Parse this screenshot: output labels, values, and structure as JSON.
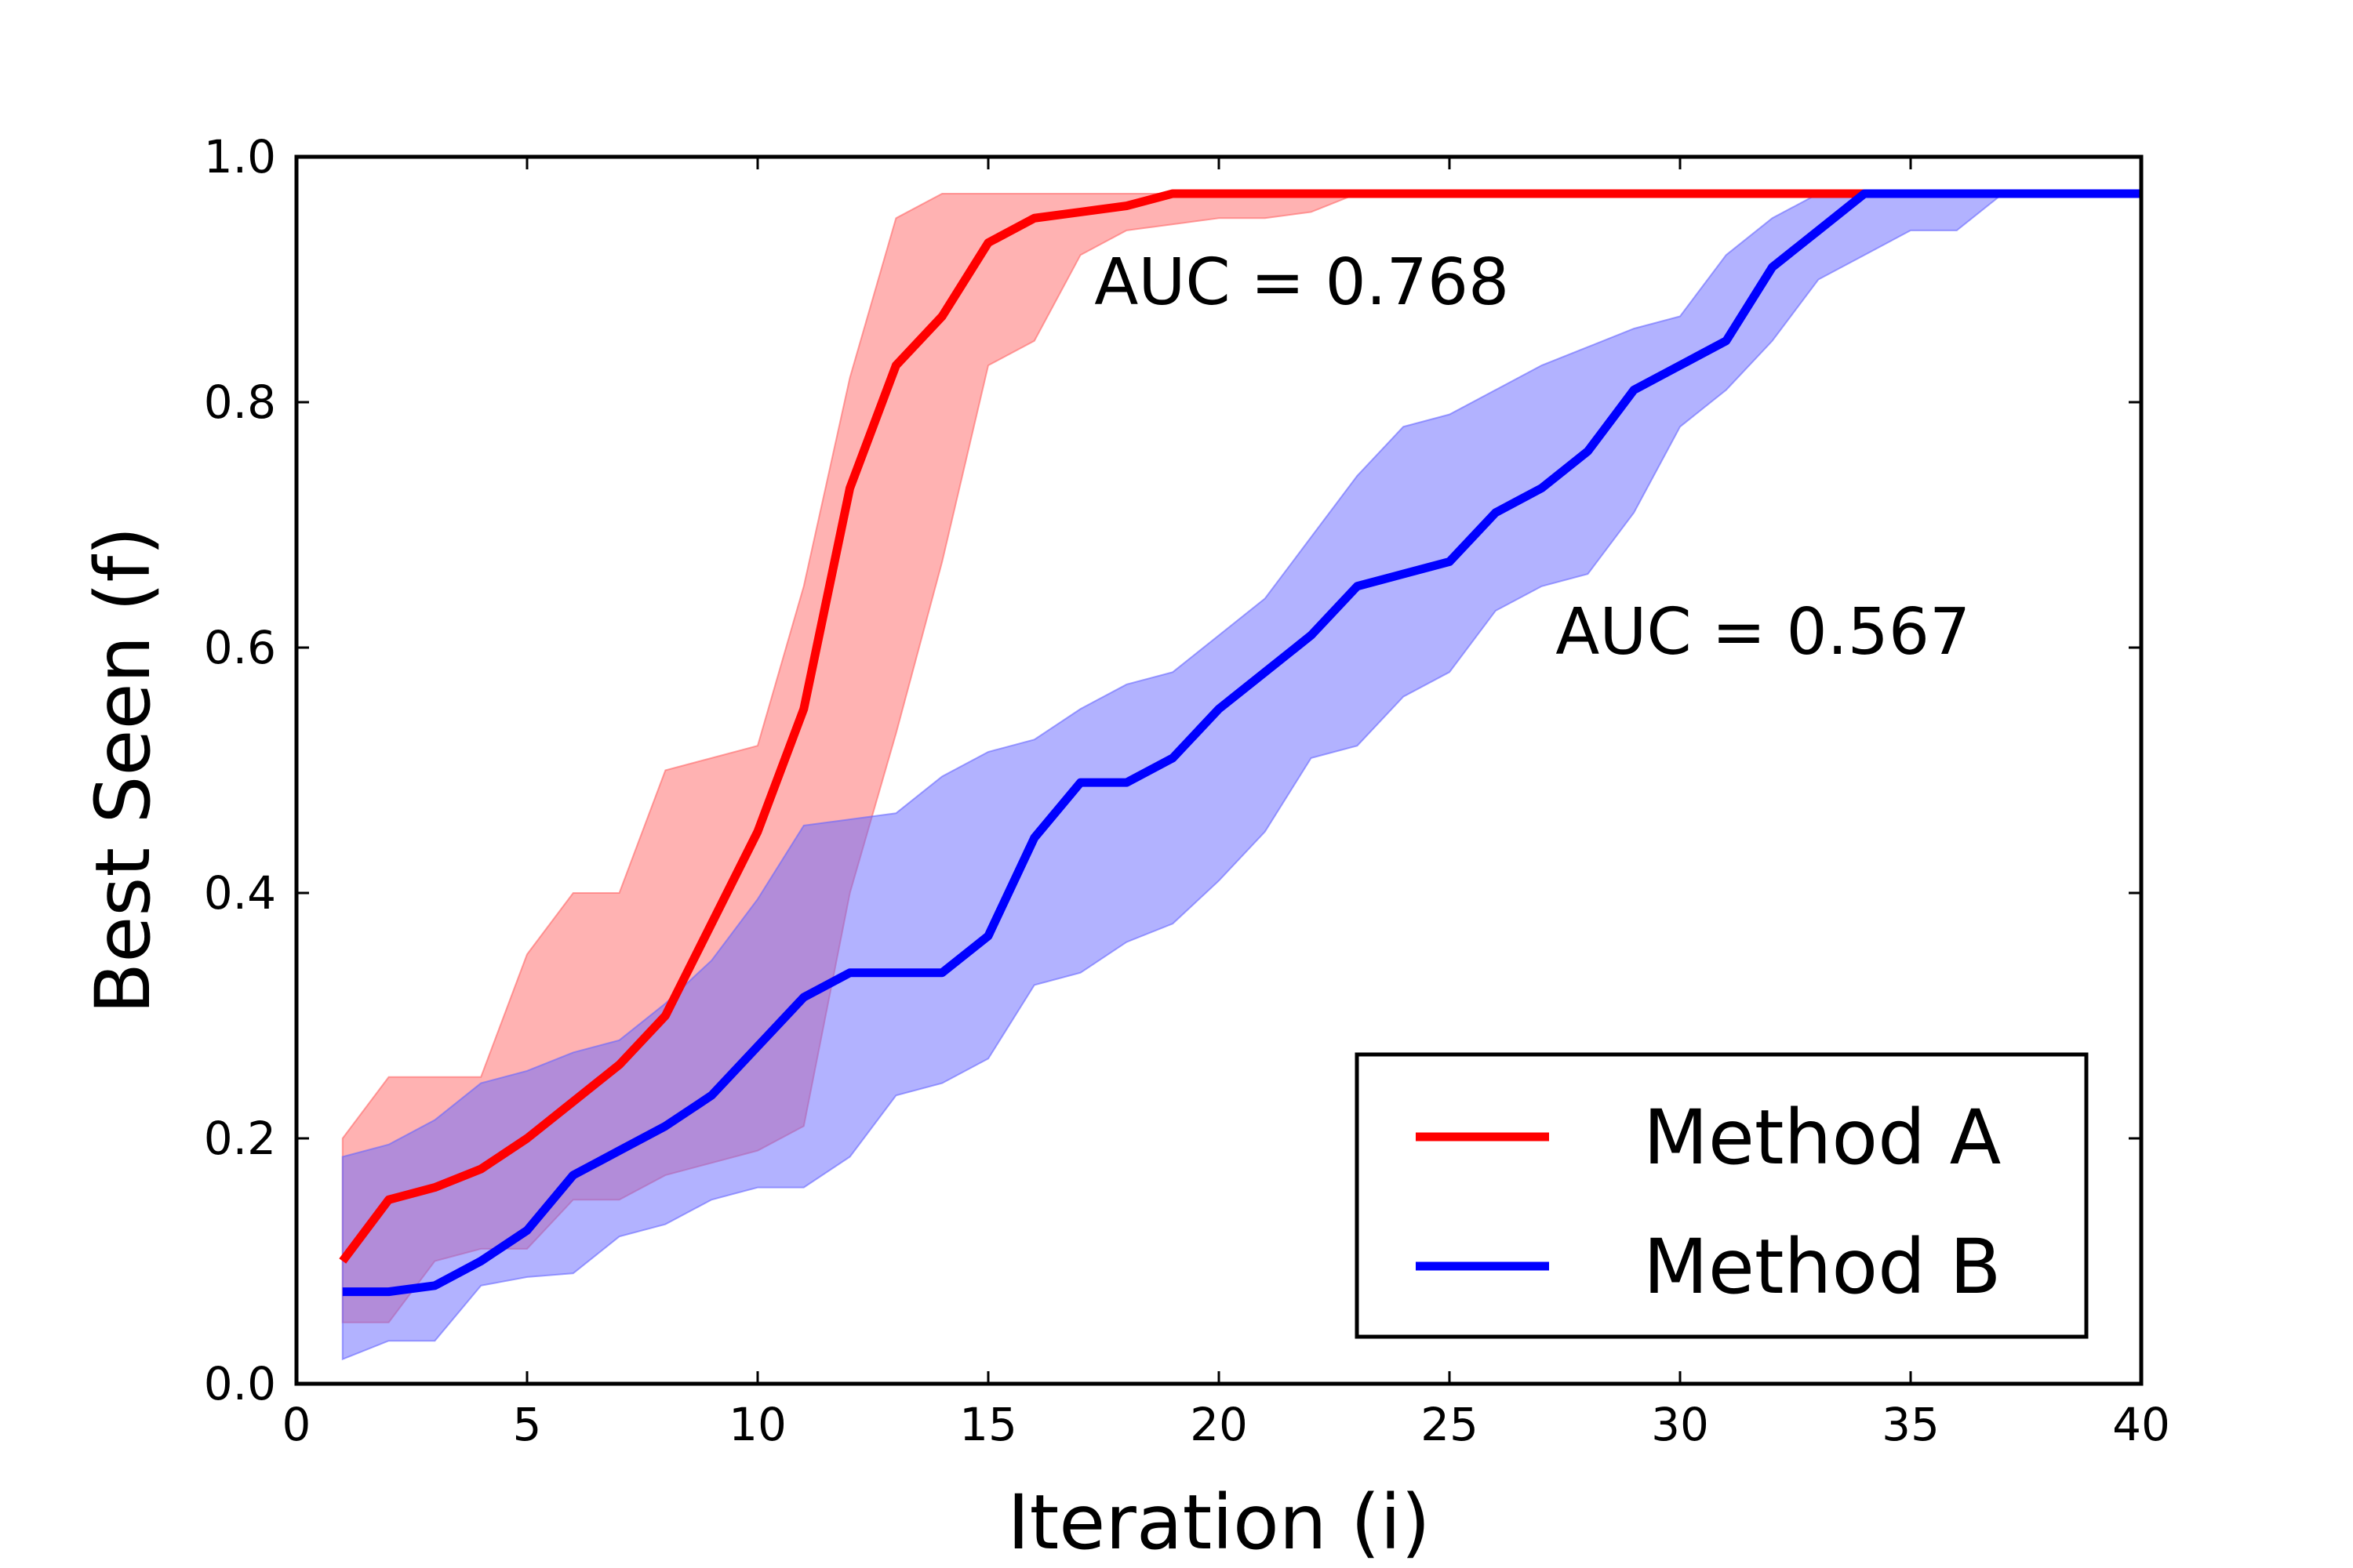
{
  "chart_data": {
    "type": "line",
    "title": "",
    "xlabel": "Iteration (i)",
    "ylabel": "Best Seen (f)",
    "xlim": [
      0,
      40
    ],
    "ylim": [
      0.0,
      1.0
    ],
    "xticks": [
      0,
      5,
      10,
      15,
      20,
      25,
      30,
      35,
      40
    ],
    "xtick_labels": [
      "0",
      "5",
      "10",
      "15",
      "20",
      "25",
      "30",
      "35",
      "40"
    ],
    "yticks": [
      0.0,
      0.2,
      0.4,
      0.6,
      0.8,
      1.0
    ],
    "ytick_labels": [
      "0.0",
      "0.2",
      "0.4",
      "0.6",
      "0.8",
      "1.0"
    ],
    "grid": false,
    "legend_position": "lower-right",
    "x": [
      1,
      2,
      3,
      4,
      5,
      6,
      7,
      8,
      9,
      10,
      11,
      12,
      13,
      14,
      15,
      16,
      17,
      18,
      19,
      20,
      21,
      22,
      23,
      24,
      25,
      26,
      27,
      28,
      29,
      30,
      31,
      32,
      33,
      34,
      35,
      36,
      37,
      38,
      39,
      40
    ],
    "series": [
      {
        "name": "Method A",
        "color": "#ff0000",
        "band_color": "#ff6666",
        "values": [
          0.1,
          0.15,
          0.16,
          0.175,
          0.2,
          0.23,
          0.26,
          0.3,
          0.375,
          0.45,
          0.55,
          0.73,
          0.83,
          0.87,
          0.93,
          0.95,
          0.955,
          0.96,
          0.97,
          0.97,
          0.97,
          0.97,
          0.97,
          0.97,
          0.97,
          0.97,
          0.97,
          0.97,
          0.97,
          0.97,
          0.97,
          0.97,
          0.97,
          0.97,
          0.97,
          0.97,
          0.97,
          0.97,
          0.97,
          0.97
        ],
        "upper": [
          0.2,
          0.25,
          0.25,
          0.25,
          0.35,
          0.4,
          0.4,
          0.5,
          0.51,
          0.52,
          0.65,
          0.82,
          0.95,
          0.97,
          0.97,
          0.97,
          0.97,
          0.97,
          0.97,
          0.97,
          0.97,
          0.97,
          0.97,
          0.97,
          0.97,
          0.97,
          0.97,
          0.97,
          0.97,
          0.97,
          0.97,
          0.97,
          0.97,
          0.97,
          0.97,
          0.97,
          0.97,
          0.97,
          0.97,
          0.97
        ],
        "lower": [
          0.05,
          0.05,
          0.1,
          0.11,
          0.11,
          0.15,
          0.15,
          0.17,
          0.18,
          0.19,
          0.21,
          0.4,
          0.53,
          0.67,
          0.83,
          0.85,
          0.92,
          0.94,
          0.945,
          0.95,
          0.95,
          0.955,
          0.97,
          0.97,
          0.97,
          0.97,
          0.97,
          0.97,
          0.97,
          0.97,
          0.97,
          0.97,
          0.97,
          0.97,
          0.97,
          0.97,
          0.97,
          0.97,
          0.97,
          0.97
        ]
      },
      {
        "name": "Method B",
        "color": "#0000ff",
        "band_color": "#6666ff",
        "values": [
          0.075,
          0.075,
          0.08,
          0.1,
          0.125,
          0.17,
          0.19,
          0.21,
          0.235,
          0.275,
          0.315,
          0.335,
          0.335,
          0.335,
          0.365,
          0.445,
          0.49,
          0.49,
          0.51,
          0.55,
          0.58,
          0.61,
          0.65,
          0.66,
          0.67,
          0.71,
          0.73,
          0.76,
          0.81,
          0.83,
          0.85,
          0.91,
          0.94,
          0.97,
          0.97,
          0.97,
          0.97,
          0.97,
          0.97,
          0.97
        ],
        "upper": [
          0.185,
          0.195,
          0.215,
          0.245,
          0.255,
          0.27,
          0.28,
          0.31,
          0.345,
          0.395,
          0.455,
          0.46,
          0.465,
          0.495,
          0.515,
          0.525,
          0.55,
          0.57,
          0.58,
          0.61,
          0.64,
          0.69,
          0.74,
          0.78,
          0.79,
          0.81,
          0.83,
          0.845,
          0.86,
          0.87,
          0.92,
          0.95,
          0.97,
          0.97,
          0.97,
          0.97,
          0.97,
          0.97,
          0.97,
          0.97
        ],
        "lower": [
          0.02,
          0.035,
          0.035,
          0.08,
          0.087,
          0.09,
          0.12,
          0.13,
          0.15,
          0.16,
          0.16,
          0.185,
          0.235,
          0.245,
          0.265,
          0.325,
          0.335,
          0.36,
          0.375,
          0.41,
          0.45,
          0.51,
          0.52,
          0.56,
          0.58,
          0.63,
          0.65,
          0.66,
          0.71,
          0.78,
          0.81,
          0.85,
          0.9,
          0.92,
          0.94,
          0.94,
          0.97,
          0.97,
          0.97,
          0.97
        ]
      }
    ],
    "annotations": [
      {
        "text": "AUC = 0.768",
        "x": 17.3,
        "y": 0.88
      },
      {
        "text": "AUC = 0.567",
        "x": 27.3,
        "y": 0.595
      }
    ]
  }
}
